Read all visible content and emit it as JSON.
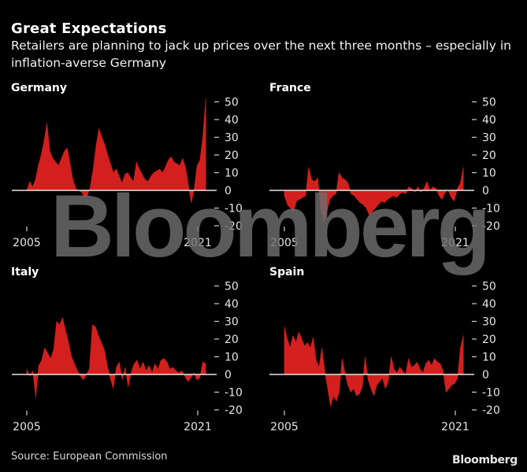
{
  "header": {
    "title": "Great Expectations",
    "subtitle": "Retailers are planning to jack up prices over the next three months – especially in inflation-averse Germany"
  },
  "footer": {
    "source": "Source: European Commission",
    "brand": "Bloomberg"
  },
  "watermark": "Bloomberg",
  "colors": {
    "area": "#d41f1f",
    "zero_line": "#e6e6e6",
    "background": "#000000"
  },
  "chart_data": [
    {
      "type": "area",
      "title": "Germany",
      "x_start": 2005,
      "x_end": 2021.75,
      "x_ticks": [
        "2005",
        "2021"
      ],
      "y_ticks": [
        "50",
        "40",
        "30",
        "20",
        "10",
        "0",
        "-10",
        "-20"
      ],
      "ylim": [
        -20,
        50
      ],
      "ylabel": "",
      "values": [
        0,
        5,
        2,
        6,
        14,
        20,
        28,
        38,
        22,
        18,
        16,
        14,
        18,
        22,
        24,
        15,
        6,
        1,
        0,
        -1,
        -4,
        -3,
        2,
        12,
        25,
        35,
        30,
        26,
        20,
        15,
        10,
        12,
        8,
        4,
        9,
        10,
        7,
        5,
        16,
        12,
        9,
        6,
        5,
        8,
        10,
        11,
        12,
        10,
        13,
        17,
        19,
        16,
        15,
        14,
        18,
        13,
        3,
        -7,
        1,
        14,
        17,
        30,
        52
      ]
    },
    {
      "type": "area",
      "title": "France",
      "x_start": 2005,
      "x_end": 2021.75,
      "x_ticks": [
        "2005",
        "2021"
      ],
      "y_ticks": [
        "50",
        "40",
        "30",
        "20",
        "10",
        "0",
        "-10",
        "-20"
      ],
      "ylim": [
        -20,
        50
      ],
      "ylabel": "",
      "values": [
        -3,
        -8,
        -10,
        -12,
        -6,
        -5,
        -4,
        -3,
        13,
        6,
        5,
        7,
        -10,
        -18,
        -12,
        -5,
        -3,
        -2,
        10,
        7,
        6,
        4,
        -2,
        -3,
        -5,
        -7,
        -8,
        -10,
        -14,
        -12,
        -10,
        -8,
        -6,
        -7,
        -5,
        -4,
        -3,
        -4,
        -2,
        -1,
        -2,
        2,
        1,
        -1,
        2,
        -1,
        1,
        5,
        0,
        2,
        1,
        -3,
        -5,
        -1,
        0,
        -4,
        -6,
        1,
        4,
        13
      ]
    },
    {
      "type": "area",
      "title": "Italy",
      "x_start": 2005,
      "x_end": 2021.75,
      "x_ticks": [
        "2005",
        "2021"
      ],
      "y_ticks": [
        "50",
        "40",
        "30",
        "20",
        "10",
        "0",
        "-10",
        "-20"
      ],
      "ylim": [
        -20,
        50
      ],
      "ylabel": "",
      "values": [
        3,
        -1,
        2,
        -13,
        5,
        8,
        15,
        12,
        9,
        14,
        30,
        28,
        32,
        25,
        18,
        10,
        6,
        2,
        -1,
        -3,
        0,
        3,
        28,
        27,
        22,
        18,
        14,
        5,
        -2,
        -8,
        4,
        7,
        -3,
        4,
        -7,
        1,
        6,
        8,
        3,
        7,
        2,
        5,
        1,
        6,
        3,
        8,
        9,
        7,
        3,
        4,
        2,
        1,
        2,
        -1,
        -4,
        -2,
        1,
        -3,
        -2,
        7,
        6
      ]
    },
    {
      "type": "area",
      "title": "Spain",
      "x_start": 2005,
      "x_end": 2021.75,
      "x_ticks": [
        "2005",
        "2021"
      ],
      "y_ticks": [
        "50",
        "40",
        "30",
        "20",
        "10",
        "0",
        "-10",
        "-20"
      ],
      "ylim": [
        -20,
        50
      ],
      "ylabel": "",
      "values": [
        27,
        20,
        15,
        22,
        18,
        24,
        20,
        16,
        18,
        15,
        21,
        8,
        4,
        15,
        2,
        -8,
        -18,
        -12,
        -15,
        -10,
        9,
        1,
        -6,
        -10,
        -8,
        -12,
        -11,
        -7,
        10,
        -3,
        -8,
        -12,
        -6,
        -4,
        -2,
        -8,
        -4,
        10,
        3,
        1,
        4,
        2,
        0,
        9,
        4,
        5,
        7,
        3,
        1,
        6,
        8,
        5,
        9,
        7,
        6,
        2,
        -10,
        -8,
        -6,
        -5,
        -2,
        15,
        22
      ]
    }
  ]
}
